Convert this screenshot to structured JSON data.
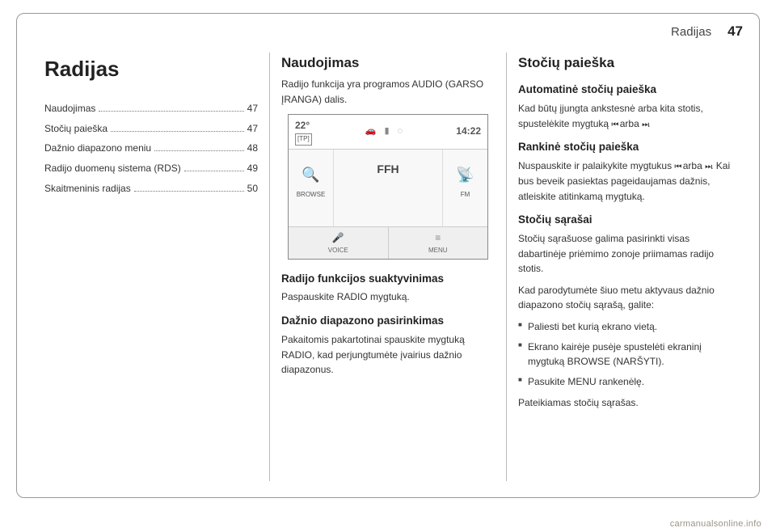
{
  "header": {
    "section": "Radijas",
    "page": "47"
  },
  "col1": {
    "title": "Radijas",
    "toc": [
      {
        "label": "Naudojimas",
        "page": "47"
      },
      {
        "label": "Stočių paieška",
        "page": "47"
      },
      {
        "label": "Dažnio diapazono meniu",
        "page": "48"
      },
      {
        "label": "Radijo duomenų sistema (RDS)",
        "page": "49"
      },
      {
        "label": "Skaitmeninis radijas",
        "page": "50"
      }
    ]
  },
  "col2": {
    "h2": "Naudojimas",
    "intro": "Radijo funkcija yra programos AUDIO (GARSO ĮRANGA) dalis.",
    "radio": {
      "temp": "22°",
      "tp": "[TP]",
      "time": "14:22",
      "browse": "BROWSE",
      "station": "FFH",
      "band": "FM",
      "voice": "VOICE",
      "menu": "MENU"
    },
    "h3a": "Radijo funkcijos suaktyvinimas",
    "p3a": "Paspauskite RADIO mygtuką.",
    "h3b": "Dažnio diapazono pasirinkimas",
    "p3b": "Pakaitomis pakartotinai spauskite mygtuką RADIO, kad perjungtumėte įvairius dažnio diapazonus."
  },
  "col3": {
    "h2": "Stočių paieška",
    "h3a": "Automatinė stočių paieška",
    "p3a_1": "Kad būtų įjungta ankstesnė arba kita stotis, spustelėkite mygtuką ",
    "p3a_2": " arba ",
    "p3a_3": ".",
    "h3b": "Rankinė stočių paieška",
    "p3b_1": "Nuspauskite ir palaikykite mygtukus ",
    "p3b_2": " arba ",
    "p3b_3": ". Kai bus beveik pasiektas pageidaujamas dažnis, atleiskite atitinkamą mygtuką.",
    "h3c": "Stočių sąrašai",
    "p3c": "Stočių sąrašuose galima pasirinkti visas dabartinėje priėmimo zonoje priimamas radijo stotis.",
    "p3d": "Kad parodytumėte šiuo metu aktyvaus dažnio diapazono stočių sąrašą, galite:",
    "bullets": [
      "Paliesti bet kurią ekrano vietą.",
      "Ekrano kairėje pusėje spustelėti ekraninį mygtuką BROWSE (NARŠYTI).",
      "Pasukite MENU rankenėlę."
    ],
    "p3e": "Pateikiamas stočių sąrašas."
  },
  "glyphs": {
    "prev": "⏮",
    "next": "⏭"
  },
  "footer": "carmanualsonline.info"
}
